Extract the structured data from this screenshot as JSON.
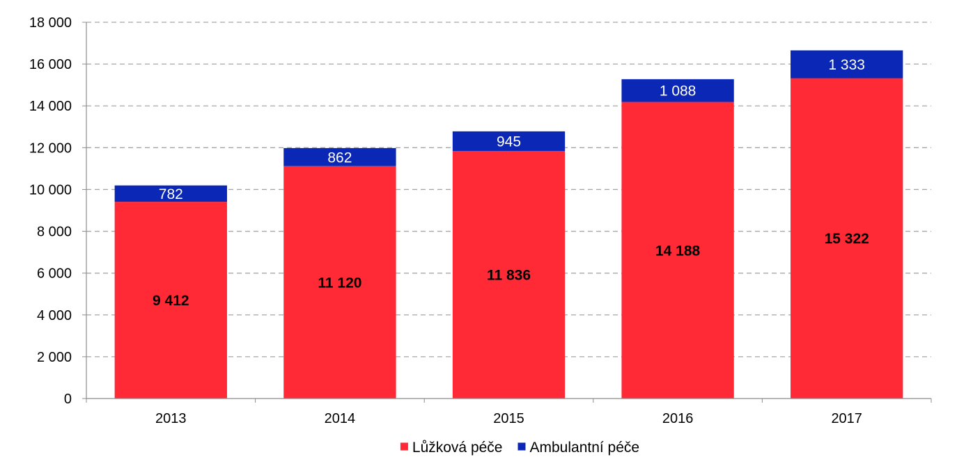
{
  "chart_data": {
    "type": "bar",
    "stacked": true,
    "categories": [
      "2013",
      "2014",
      "2015",
      "2016",
      "2017"
    ],
    "series": [
      {
        "name": "Lůžková péče",
        "color": "#ff2a35",
        "values": [
          9412,
          11120,
          11836,
          14188,
          15322
        ],
        "labels": [
          "9 412",
          "11 120",
          "11 836",
          "14 188",
          "15 322"
        ]
      },
      {
        "name": "Ambulantní péče",
        "color": "#0a27b5",
        "values": [
          782,
          862,
          945,
          1088,
          1333
        ],
        "labels": [
          "782",
          "862",
          "945",
          "1 088",
          "1 333"
        ]
      }
    ],
    "ylim": [
      0,
      18000
    ],
    "yticks": [
      0,
      2000,
      4000,
      6000,
      8000,
      10000,
      12000,
      14000,
      16000,
      18000
    ],
    "ytick_labels": [
      "0",
      "2 000",
      "4 000",
      "6 000",
      "8 000",
      "10 000",
      "12 000",
      "14 000",
      "16 000",
      "18 000"
    ],
    "grid": true,
    "legend_position": "bottom-center",
    "title": "",
    "xlabel": "",
    "ylabel": ""
  }
}
